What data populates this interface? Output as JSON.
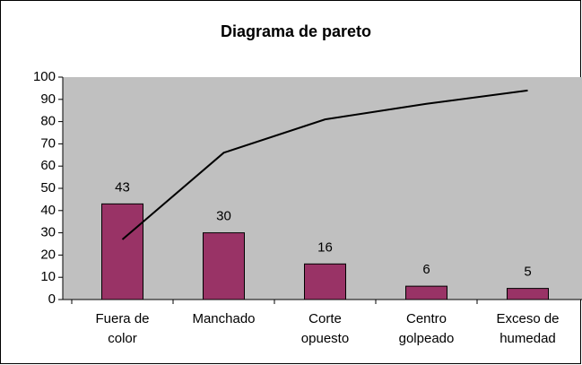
{
  "chart_data": {
    "type": "bar",
    "title": "Diagrama de pareto",
    "categories": [
      "Fuera de color",
      "Manchado",
      "Corte opuesto",
      "Centro golpeado",
      "Exceso de humedad"
    ],
    "values": [
      43,
      30,
      16,
      6,
      5
    ],
    "color": "#993366",
    "line_values": [
      27,
      66,
      81,
      88,
      94
    ],
    "line_color": "#000000",
    "ylim": [
      0,
      100
    ],
    "yticks": [
      0,
      10,
      20,
      30,
      40,
      50,
      60,
      70,
      80,
      90,
      100
    ]
  }
}
